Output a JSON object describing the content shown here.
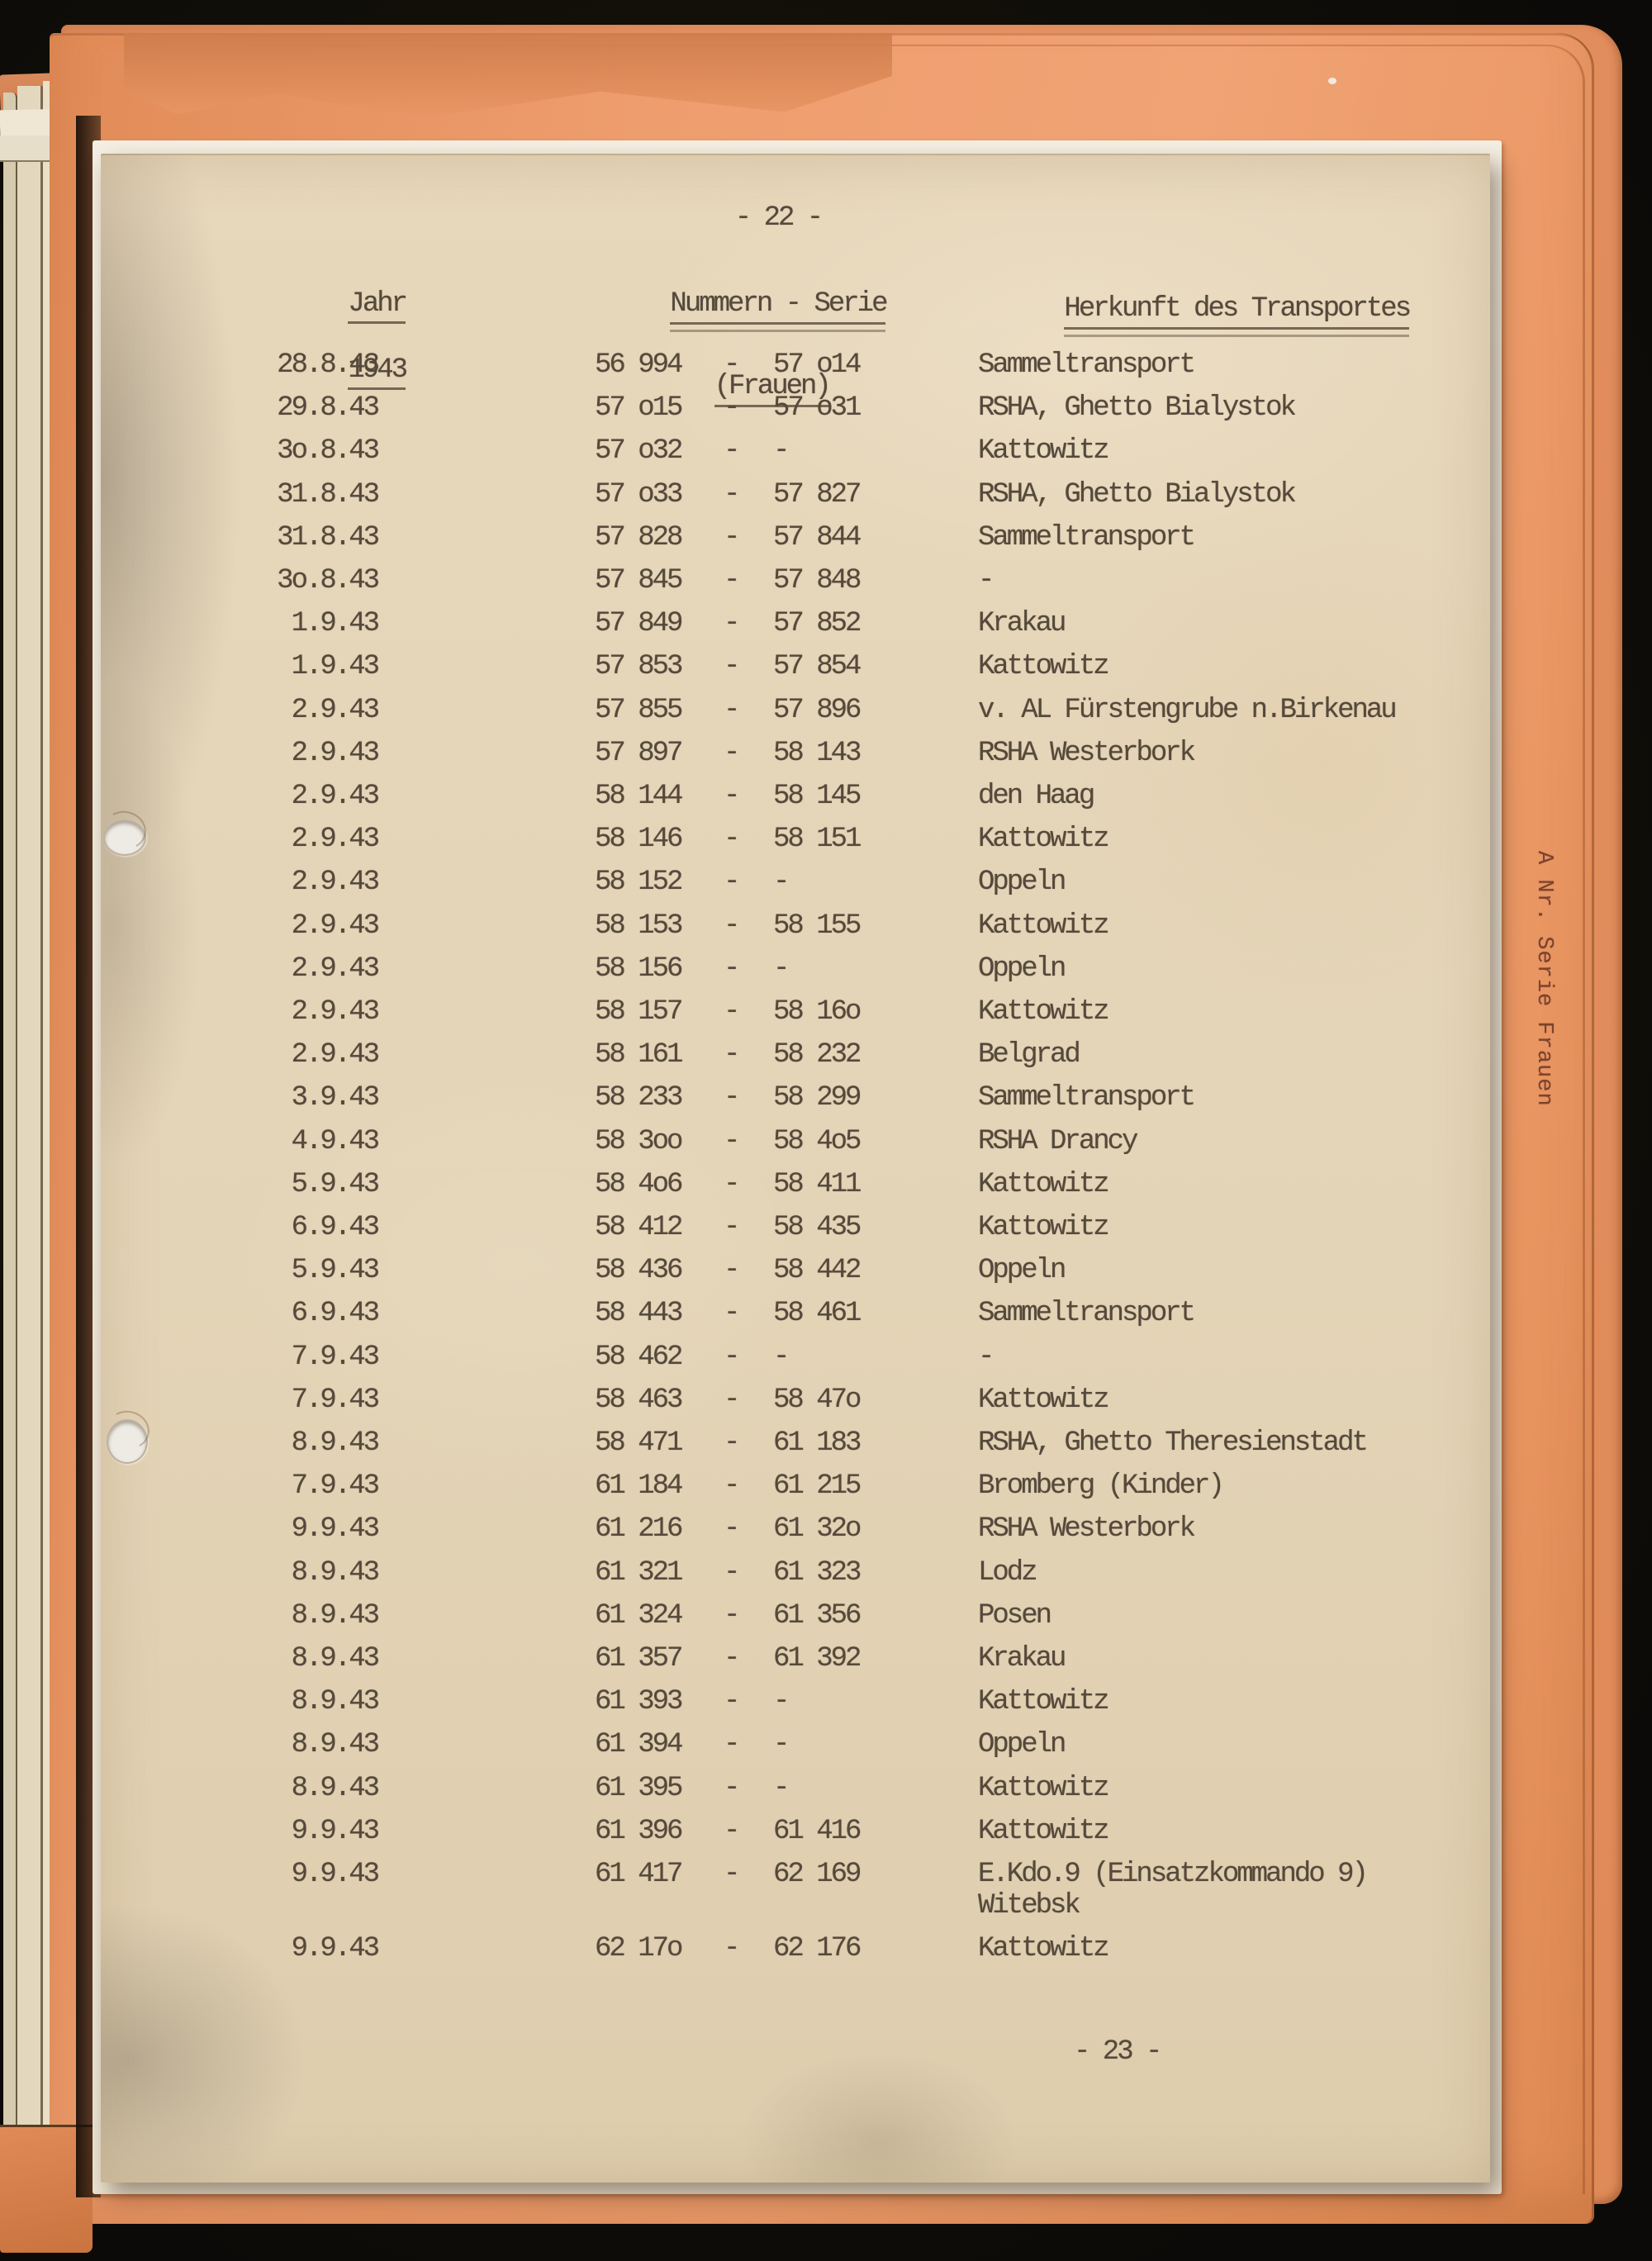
{
  "document": {
    "page_number_top": "- 22 -",
    "page_number_bottom": "- 23 -",
    "headers": {
      "col_date_line1": "Jahr",
      "col_date_line2": "1943",
      "col_numbers_line1": "Nummern - Serie",
      "col_numbers_line2": "(Frauen)",
      "col_origin": "Herkunft des Transportes"
    },
    "separator": "-",
    "side_tab_label": "A  Nr. Serie Frauen",
    "table": {
      "rows": [
        {
          "date": "28.8.43",
          "from": "56 994",
          "to": "57 o14",
          "origin": "Sammeltransport"
        },
        {
          "date": "29.8.43",
          "from": "57 o15",
          "to": "57 o31",
          "origin": "RSHA, Ghetto Bialystok"
        },
        {
          "date": "3o.8.43",
          "from": "57 o32",
          "to": "-",
          "origin": "Kattowitz"
        },
        {
          "date": "31.8.43",
          "from": "57 o33",
          "to": "57 827",
          "origin": "RSHA, Ghetto Bialystok"
        },
        {
          "date": "31.8.43",
          "from": "57 828",
          "to": "57 844",
          "origin": "Sammeltransport"
        },
        {
          "date": "3o.8.43",
          "from": "57 845",
          "to": "57 848",
          "origin": "-"
        },
        {
          "date": "1.9.43",
          "from": "57 849",
          "to": "57 852",
          "origin": "Krakau"
        },
        {
          "date": "1.9.43",
          "from": "57 853",
          "to": "57 854",
          "origin": "Kattowitz"
        },
        {
          "date": "2.9.43",
          "from": "57 855",
          "to": "57 896",
          "origin": "v. AL Fürstengrube n.Birkenau"
        },
        {
          "date": "2.9.43",
          "from": "57 897",
          "to": "58 143",
          "origin": "RSHA Westerbork"
        },
        {
          "date": "2.9.43",
          "from": "58 144",
          "to": "58 145",
          "origin": "den Haag"
        },
        {
          "date": "2.9.43",
          "from": "58 146",
          "to": "58 151",
          "origin": "Kattowitz"
        },
        {
          "date": "2.9.43",
          "from": "58 152",
          "to": "-",
          "origin": "Oppeln"
        },
        {
          "date": "2.9.43",
          "from": "58 153",
          "to": "58 155",
          "origin": "Kattowitz"
        },
        {
          "date": "2.9.43",
          "from": "58 156",
          "to": "-",
          "origin": "Oppeln"
        },
        {
          "date": "2.9.43",
          "from": "58 157",
          "to": "58 16o",
          "origin": "Kattowitz"
        },
        {
          "date": "2.9.43",
          "from": "58 161",
          "to": "58 232",
          "origin": "Belgrad"
        },
        {
          "date": "3.9.43",
          "from": "58 233",
          "to": "58 299",
          "origin": "Sammeltransport"
        },
        {
          "date": "4.9.43",
          "from": "58 3oo",
          "to": "58 4o5",
          "origin": "RSHA Drancy"
        },
        {
          "date": "5.9.43",
          "from": "58 4o6",
          "to": "58 411",
          "origin": "Kattowitz"
        },
        {
          "date": "6.9.43",
          "from": "58 412",
          "to": "58 435",
          "origin": "Kattowitz"
        },
        {
          "date": "5.9.43",
          "from": "58 436",
          "to": "58 442",
          "origin": "Oppeln"
        },
        {
          "date": "6.9.43",
          "from": "58 443",
          "to": "58 461",
          "origin": "Sammeltransport"
        },
        {
          "date": "7.9.43",
          "from": "58 462",
          "to": "-",
          "origin": "-"
        },
        {
          "date": "7.9.43",
          "from": "58 463",
          "to": "58 47o",
          "origin": "Kattowitz"
        },
        {
          "date": "8.9.43",
          "from": "58 471",
          "to": "61 183",
          "origin": "RSHA, Ghetto Theresienstadt"
        },
        {
          "date": "7.9.43",
          "from": "61 184",
          "to": "61 215",
          "origin": "Bromberg (Kinder)"
        },
        {
          "date": "9.9.43",
          "from": "61 216",
          "to": "61 32o",
          "origin": "RSHA Westerbork"
        },
        {
          "date": "8.9.43",
          "from": "61 321",
          "to": "61 323",
          "origin": "Lodz"
        },
        {
          "date": "8.9.43",
          "from": "61 324",
          "to": "61 356",
          "origin": "Posen"
        },
        {
          "date": "8.9.43",
          "from": "61 357",
          "to": "61 392",
          "origin": "Krakau"
        },
        {
          "date": "8.9.43",
          "from": "61 393",
          "to": "-",
          "origin": "Kattowitz"
        },
        {
          "date": "8.9.43",
          "from": "61 394",
          "to": "-",
          "origin": "Oppeln"
        },
        {
          "date": "8.9.43",
          "from": "61 395",
          "to": "-",
          "origin": "Kattowitz"
        },
        {
          "date": "9.9.43",
          "from": "61 396",
          "to": "61 416",
          "origin": "Kattowitz"
        },
        {
          "date": "9.9.43",
          "from": "61 417",
          "to": "62 169",
          "origin": "E.Kdo.9 (Einsatzkommando 9)",
          "origin_line2": "Witebsk"
        },
        {
          "date": "9.9.43",
          "from": "62 17o",
          "to": "62 176",
          "origin": "Kattowitz"
        }
      ]
    }
  },
  "colors": {
    "background": "#141110",
    "folder_front": "#ee9d6e",
    "folder_back": "#e08a58",
    "paper": "#e4d4b7",
    "under_sheet": "#f4efe2",
    "ink": "#55493b",
    "tab_ink": "#7b432e"
  }
}
